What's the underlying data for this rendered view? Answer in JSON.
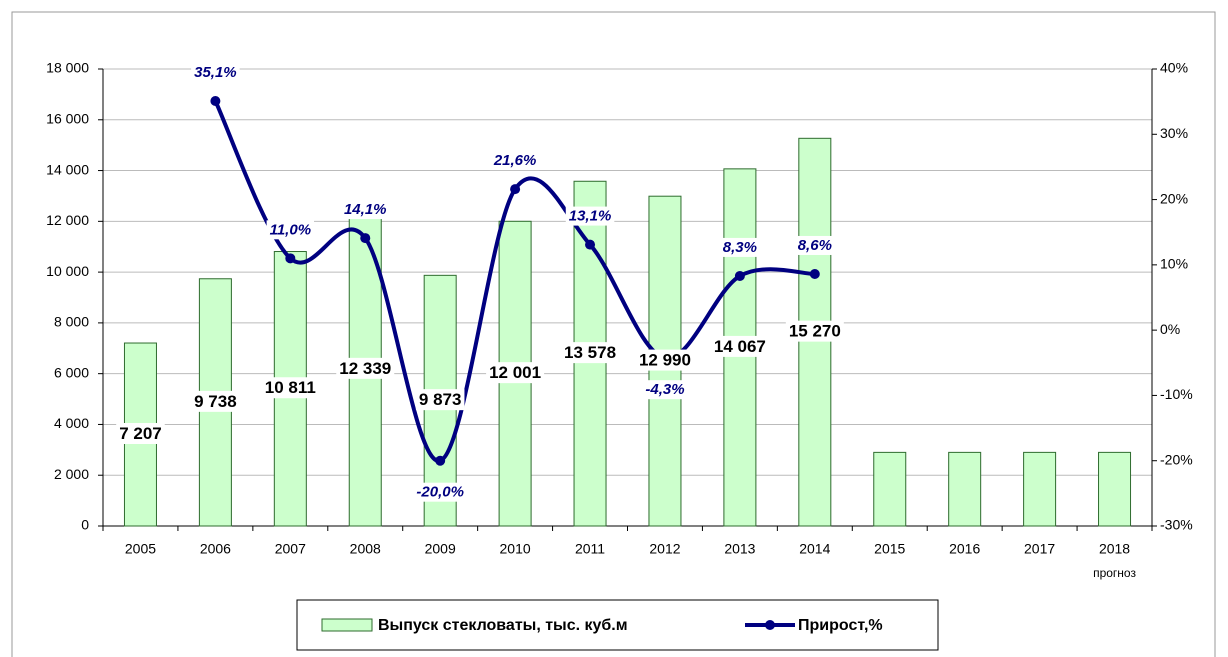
{
  "chart_data": {
    "type": "bar",
    "categories": [
      "2005",
      "2006",
      "2007",
      "2008",
      "2009",
      "2010",
      "2011",
      "2012",
      "2013",
      "2014",
      "2015",
      "2016",
      "2017",
      "2018"
    ],
    "forecast_note": "прогноз",
    "series": [
      {
        "name": "Выпуск стекловаты, тыс. куб.м",
        "type": "bar",
        "color": "#ccffcc",
        "border": "#2e6b2e",
        "values": [
          7207,
          9738,
          10811,
          12339,
          9873,
          12001,
          13578,
          12990,
          14067,
          15270,
          2900,
          2900,
          2900,
          2900
        ],
        "value_labels": [
          "7 207",
          "9 738",
          "10 811",
          "12 339",
          "9 873",
          "12 001",
          "13 578",
          "12 990",
          "14 067",
          "15 270",
          null,
          null,
          null,
          null
        ]
      },
      {
        "name": "Прирост,%",
        "type": "line",
        "axis": "y2",
        "color": "#000080",
        "values": [
          null,
          35.1,
          11.0,
          14.1,
          -20.0,
          21.6,
          13.1,
          -4.3,
          8.3,
          8.6,
          null,
          null,
          null,
          null
        ],
        "value_labels": [
          null,
          "35,1%",
          "11,0%",
          "14,1%",
          "-20,0%",
          "21,6%",
          "13,1%",
          "-4,3%",
          "8,3%",
          "8,6%",
          null,
          null,
          null,
          null
        ]
      }
    ],
    "ylim": [
      0,
      18000
    ],
    "yticks": [
      0,
      {
        "value": 2000,
        "label": "2 000"
      },
      {
        "value": 4000,
        "label": "4 000"
      },
      {
        "value": 6000,
        "label": "6 000"
      },
      {
        "value": 8000,
        "label": "8 000"
      },
      {
        "value": 10000,
        "label": "10 000"
      },
      {
        "value": 12000,
        "label": "12 000"
      },
      {
        "value": 14000,
        "label": "14 000"
      },
      {
        "value": 16000,
        "label": "16 000"
      },
      {
        "value": 18000,
        "label": "18 000"
      }
    ],
    "y2lim": [
      -30,
      40
    ],
    "y2ticks": [
      {
        "value": -30,
        "label": "-30%"
      },
      {
        "value": -20,
        "label": "-20%"
      },
      {
        "value": -10,
        "label": "-10%"
      },
      {
        "value": 0,
        "label": "0%"
      },
      {
        "value": 10,
        "label": "10%"
      },
      {
        "value": 20,
        "label": "20%"
      },
      {
        "value": 30,
        "label": "30%"
      },
      {
        "value": 40,
        "label": "40%"
      }
    ],
    "grid": true,
    "legend": "bottom"
  }
}
